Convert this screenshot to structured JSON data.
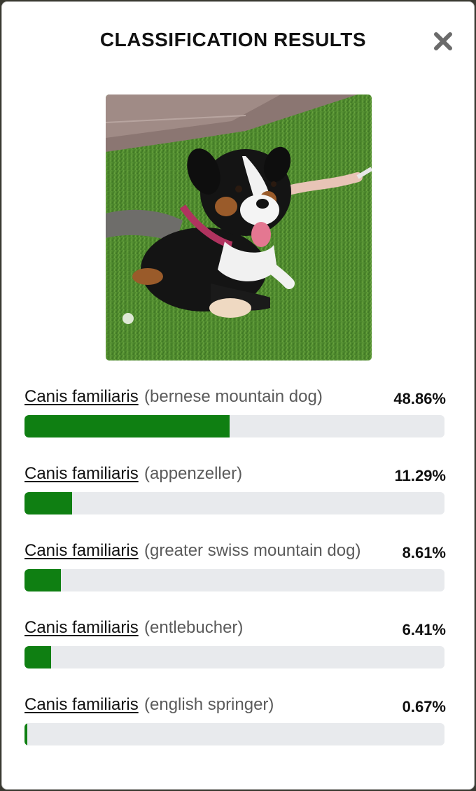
{
  "dialog": {
    "title": "CLASSIFICATION RESULTS",
    "close_icon": "close-icon"
  },
  "photo": {
    "subject": "dog-photo"
  },
  "colors": {
    "bar_fill": "#0f7f12",
    "bar_track": "#e8eaed"
  },
  "results": [
    {
      "species": "Canis familiaris",
      "common": "(bernese mountain dog)",
      "percent_label": "48.86%",
      "percent": 48.86
    },
    {
      "species": "Canis familiaris",
      "common": "(appenzeller)",
      "percent_label": "11.29%",
      "percent": 11.29
    },
    {
      "species": "Canis familiaris",
      "common": "(greater swiss mountain dog)",
      "percent_label": "8.61%",
      "percent": 8.61
    },
    {
      "species": "Canis familiaris",
      "common": "(entlebucher)",
      "percent_label": "6.41%",
      "percent": 6.41
    },
    {
      "species": "Canis familiaris",
      "common": "(english springer)",
      "percent_label": "0.67%",
      "percent": 0.67
    }
  ]
}
